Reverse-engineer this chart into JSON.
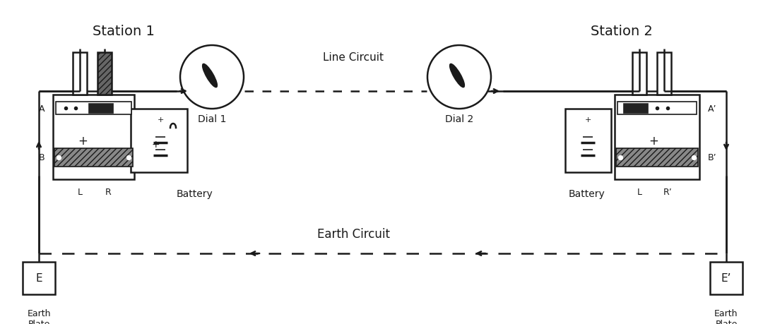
{
  "bg_color": "#ffffff",
  "line_color": "#1a1a1a",
  "station1_label": "Station 1",
  "station2_label": "Station 2",
  "dial1_label": "Dial 1",
  "dial2_label": "Dial 2",
  "line_circuit_label": "Line Circuit",
  "earth_circuit_label": "Earth Circuit",
  "battery_label1": "Battery",
  "battery_label2": "Battery",
  "earth1_label": "E",
  "earth2_label": "E’",
  "earth_plate1": "Earth\nPlate",
  "earth_plate2": "Earth\nPlate",
  "A_label": "A",
  "B_label": "B",
  "A2_label": "A’",
  "B2_label": "B’",
  "L1_label": "L",
  "R1_label": "R",
  "L2_label": "L",
  "R2_label": "R’"
}
